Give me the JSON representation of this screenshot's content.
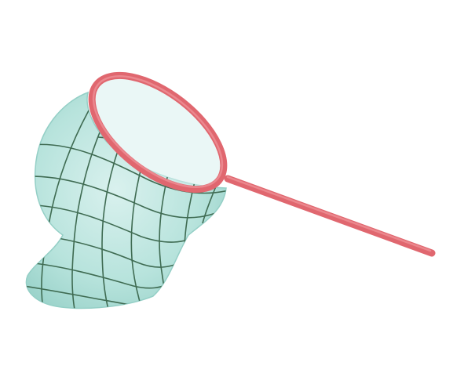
{
  "illustration": {
    "subject": "butterfly-net-icon",
    "colors": {
      "background": "#ffffff",
      "net_fill_light": "#d9f1ee",
      "net_fill_mid": "#b7e3dc",
      "net_fill_dark": "#94cfc6",
      "mesh": "#3f6b52",
      "rim": "#e0676f",
      "rim_highlight": "#f0959b",
      "handle": "#e0676f"
    }
  }
}
